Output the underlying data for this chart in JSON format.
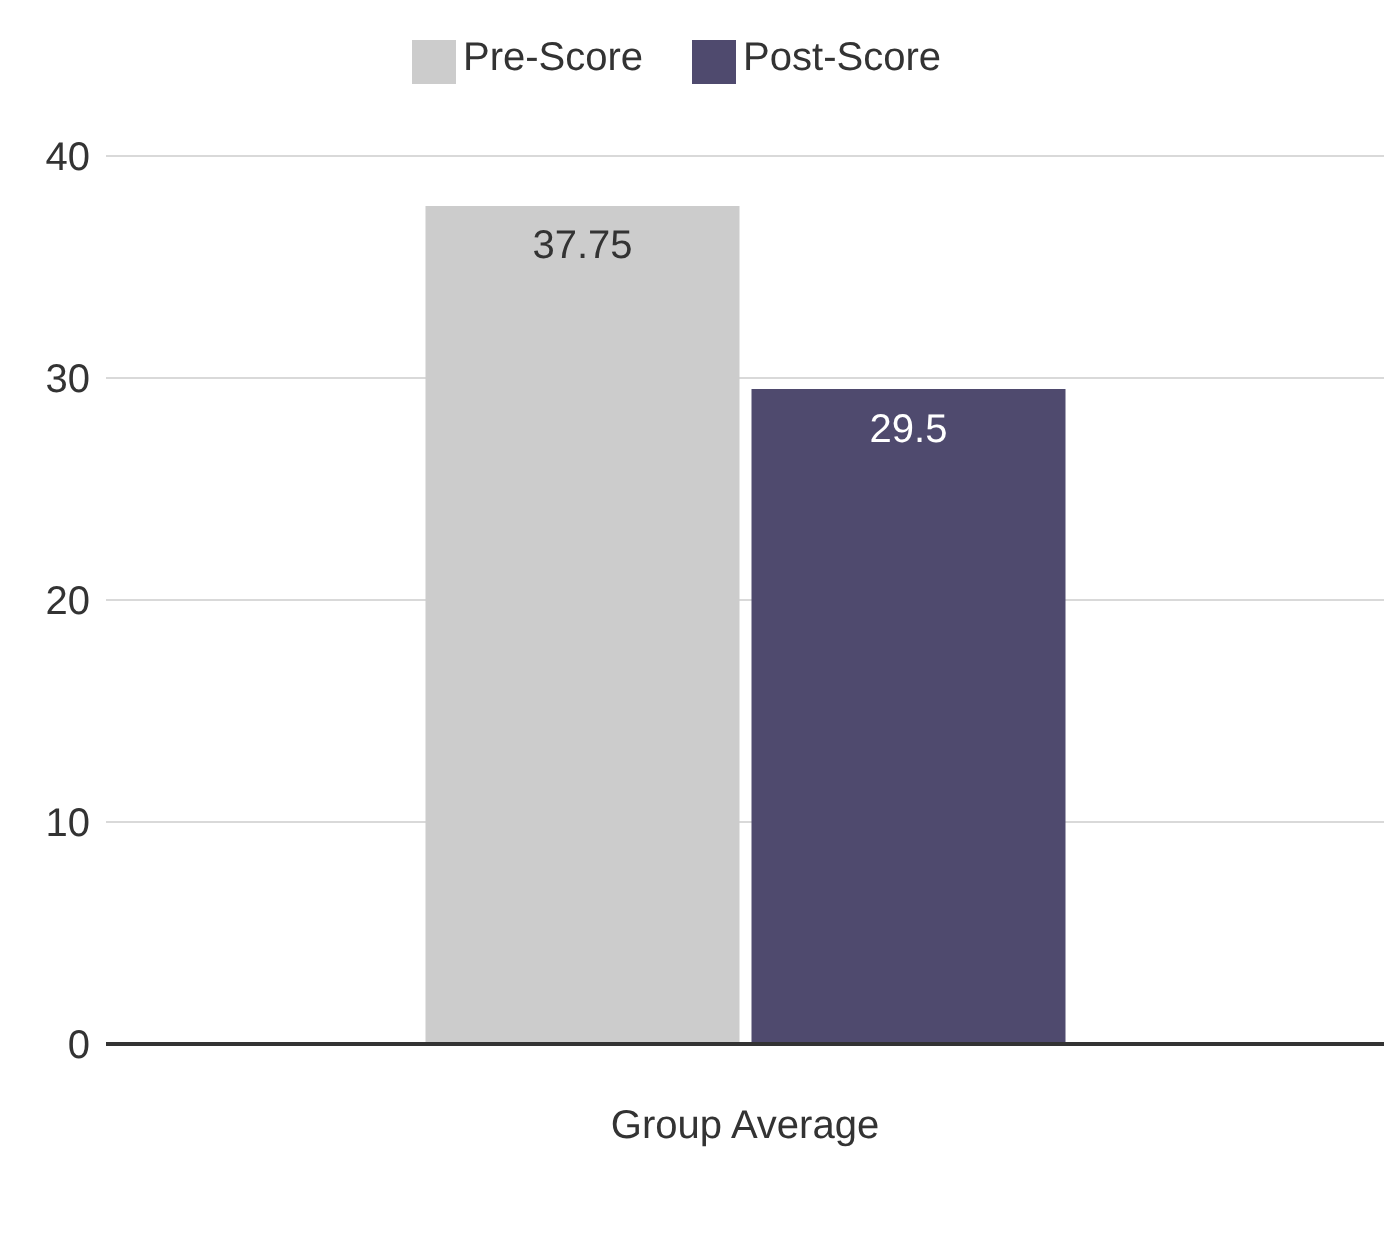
{
  "chart_data": {
    "type": "bar",
    "categories": [
      "Group Average"
    ],
    "series": [
      {
        "name": "Pre-Score",
        "color": "#cccccc",
        "values": [
          37.75
        ]
      },
      {
        "name": "Post-Score",
        "color": "#4f4a6e",
        "values": [
          29.5
        ]
      }
    ],
    "ylim": [
      0,
      40
    ],
    "yticks": [
      0,
      10,
      20,
      30,
      40
    ],
    "grid": "y",
    "legend": "top",
    "data_labels": true
  }
}
